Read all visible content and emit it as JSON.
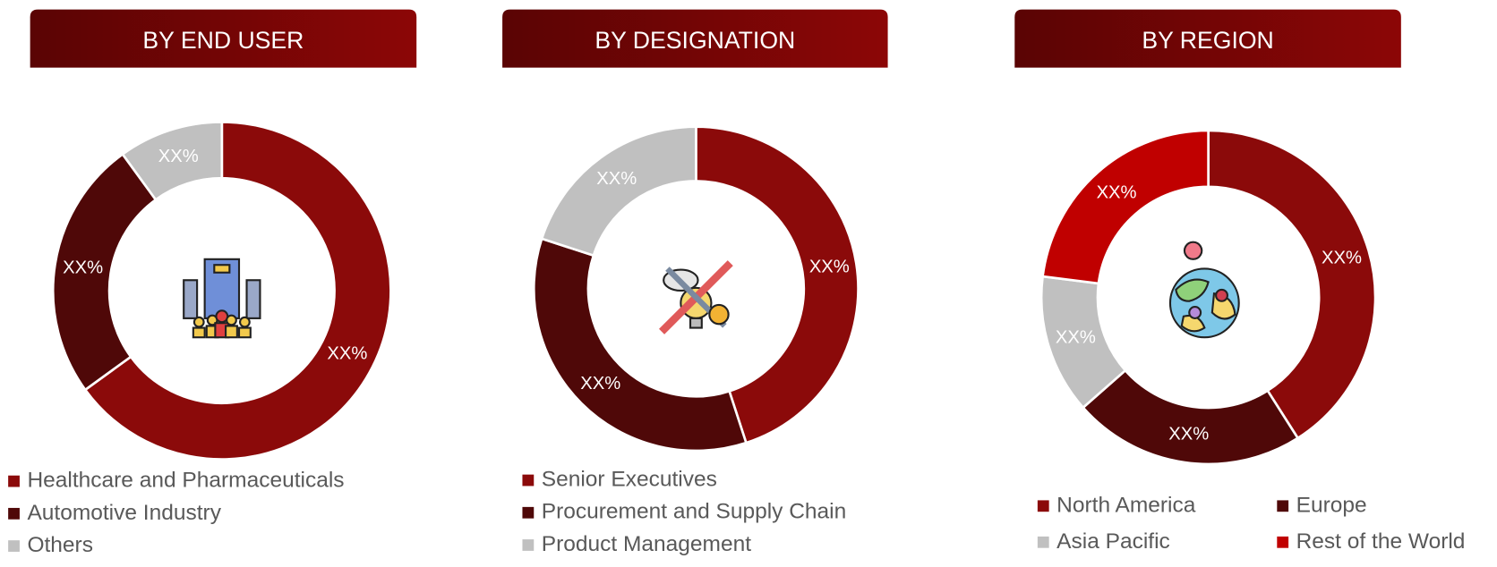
{
  "chart_data": [
    {
      "type": "donut",
      "title": "BY END USER",
      "categories": [
        "Healthcare and Pharmaceuticals",
        "Automotive Industry",
        "Others"
      ],
      "values": [
        65,
        25,
        10
      ],
      "value_labels": [
        "XX%",
        "XX%",
        "XX%"
      ],
      "colors": [
        "#8b0a0a",
        "#4f0808",
        "#c0c0c0"
      ]
    },
    {
      "type": "donut",
      "title": "BY DESIGNATION",
      "categories": [
        "Senior Executives",
        "Procurement and Supply Chain",
        "Product Management"
      ],
      "values": [
        45,
        35,
        20
      ],
      "value_labels": [
        "XX%",
        "XX%",
        "XX%"
      ],
      "colors": [
        "#8b0a0a",
        "#4f0808",
        "#c0c0c0"
      ]
    },
    {
      "type": "donut",
      "title": "BY REGION",
      "categories": [
        "North America",
        "Europe",
        "Asia Pacific",
        "Rest of the World"
      ],
      "values": [
        41,
        22.5,
        13.5,
        23
      ],
      "value_labels": [
        "XX%",
        "XX%",
        "XX%",
        "XX%"
      ],
      "colors": [
        "#8b0a0a",
        "#4f0808",
        "#c0c0c0",
        "#c00000"
      ]
    }
  ]
}
